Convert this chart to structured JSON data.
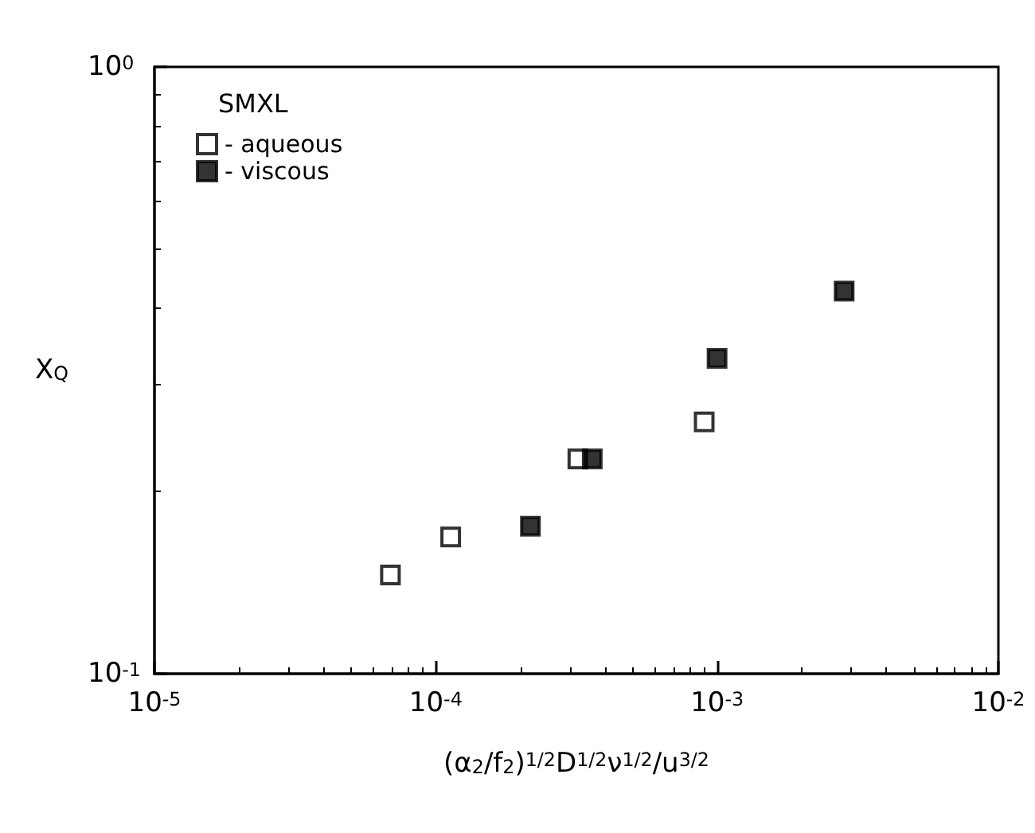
{
  "chart_data": {
    "type": "scatter",
    "xlabel": "(α$_{2}$/f$_{2}$)$^{1/2}$D$^{1/2}$ν$^{1/2}$/u$^{3/2}$",
    "ylabel": "X$_{Q}$",
    "legend_title": "SMXL",
    "legend": "top left",
    "log": "xy",
    "marker": "square",
    "grid": false,
    "xlim": [
      1e-05,
      0.01
    ],
    "xticks": [
      {
        "value": 1e-05,
        "label": "10$^{-5}$"
      },
      {
        "value": 0.0001,
        "label": "10$^{-4}$"
      },
      {
        "value": 0.001,
        "label": "10$^{-3}$"
      },
      {
        "value": 0.01,
        "label": "10$^{-2}$"
      }
    ],
    "ylim": [
      0.1,
      1
    ],
    "yticks": [
      {
        "value": 0.1,
        "label": "10$^{-1}$"
      },
      {
        "value": 1,
        "label": "10$^{0}$"
      }
    ],
    "series": [
      {
        "name": "- aqueous",
        "color": "#ffffff",
        "x": [
          6.9e-05,
          0.000113,
          0.00032,
          0.0009
        ],
        "values": [
          0.1455,
          0.168,
          0.226,
          0.26
        ]
      },
      {
        "name": "- viscous",
        "color": "#000000",
        "x": [
          0.000217,
          0.00036,
          0.001,
          0.00283
        ],
        "values": [
          0.175,
          0.226,
          0.331,
          0.427
        ]
      }
    ]
  }
}
